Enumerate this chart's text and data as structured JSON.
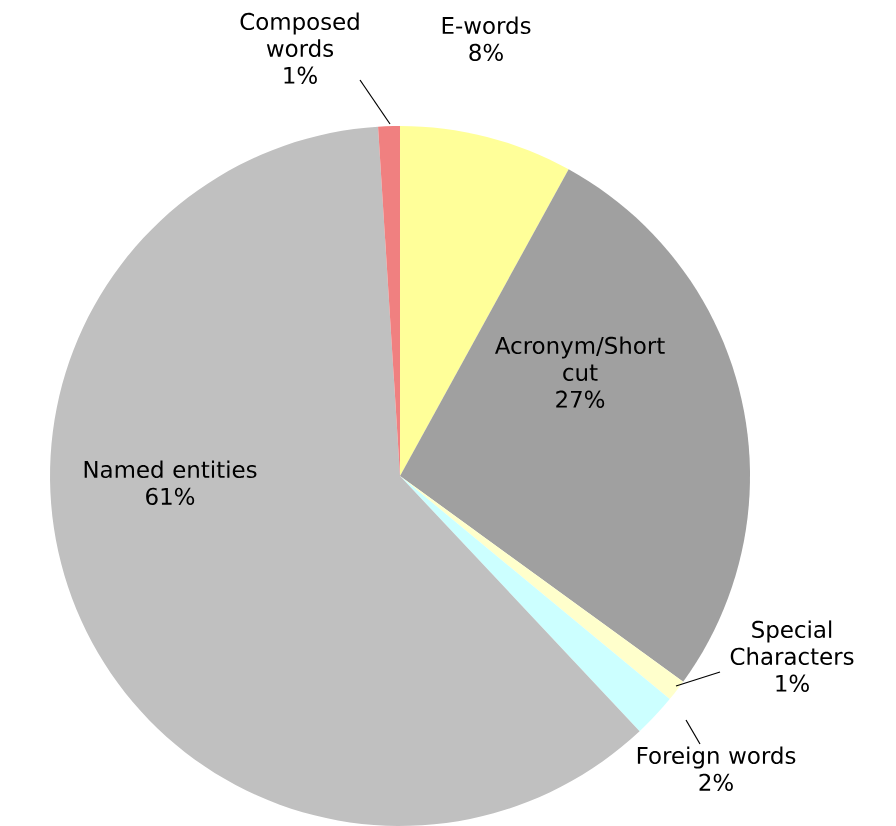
{
  "chart_data": {
    "type": "pie",
    "categories": [
      "E-words",
      "Acronym/Short cut",
      "Special Characters",
      "Foreign words",
      "Named entities",
      "Composed words"
    ],
    "values": [
      8,
      27,
      1,
      2,
      61,
      1
    ],
    "value_labels": [
      "8%",
      "27%",
      "1%",
      "2%",
      "61%",
      "1%"
    ],
    "colors": [
      "#ffff99",
      "#a0a0a0",
      "#ffffcc",
      "#ccffff",
      "#c0c0c0",
      "#f08080"
    ]
  }
}
